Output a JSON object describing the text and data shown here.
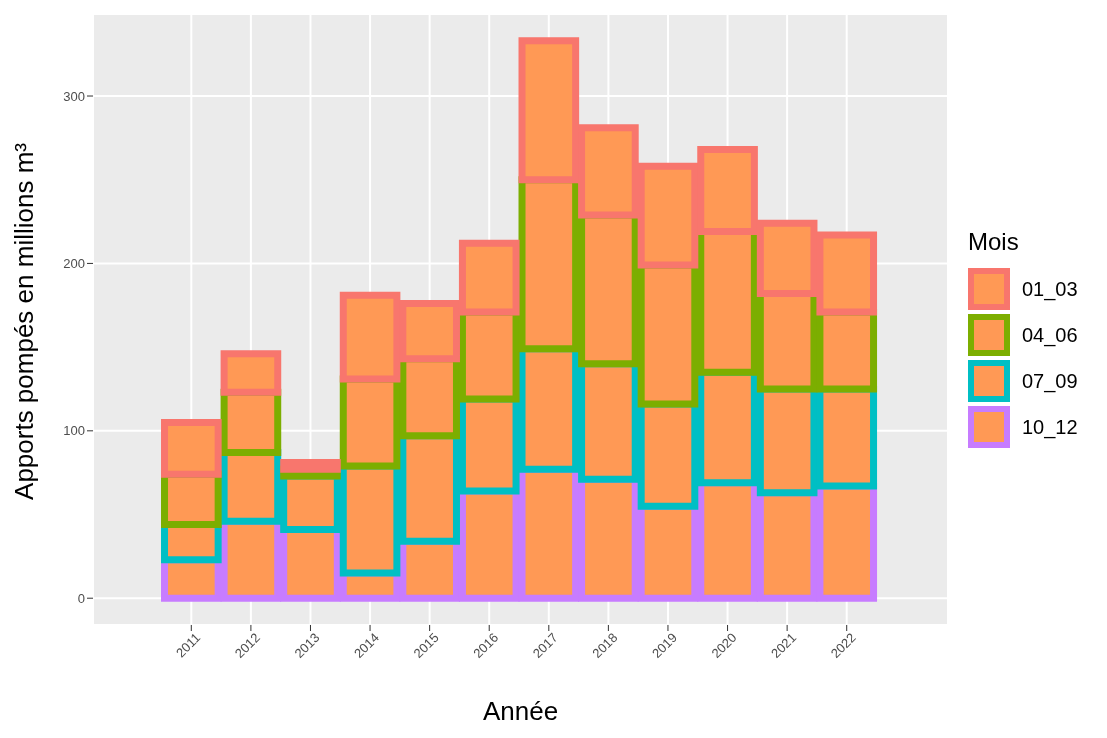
{
  "chart_data": {
    "type": "bar",
    "stacked": true,
    "xlabel": "Année",
    "ylabel": "Apports pompés en millions m³",
    "legend_title": "Mois",
    "legend": "right",
    "grid": true,
    "x": [
      2011,
      2012,
      2013,
      2014,
      2015,
      2016,
      2017,
      2018,
      2019,
      2020,
      2021,
      2022
    ],
    "xlim": [
      2009.35,
      2023.7
    ],
    "xticks": [
      2011,
      2012,
      2013,
      2014,
      2015,
      2016,
      2017,
      2018,
      2019,
      2020,
      2021,
      2022
    ],
    "ylim": [
      -16,
      349
    ],
    "yticks": [
      0,
      100,
      200,
      300
    ],
    "series": [
      {
        "name": "10_12",
        "color": "#c77cff",
        "values": [
          23,
          46,
          41,
          15,
          34,
          64,
          77,
          71,
          55,
          69,
          63,
          67
        ]
      },
      {
        "name": "07_09",
        "color": "#00bfc4",
        "values": [
          21,
          41,
          32,
          64,
          63,
          55,
          72,
          69,
          61,
          66,
          62,
          58
        ]
      },
      {
        "name": "04_06",
        "color": "#7cae00",
        "values": [
          30,
          36,
          4,
          52,
          46,
          52,
          101,
          89,
          83,
          84,
          57,
          46
        ]
      },
      {
        "name": "01_03",
        "color": "#f8766d",
        "values": [
          31,
          23,
          4,
          50,
          33,
          41,
          83,
          52,
          59,
          49,
          42,
          46
        ]
      }
    ]
  }
}
